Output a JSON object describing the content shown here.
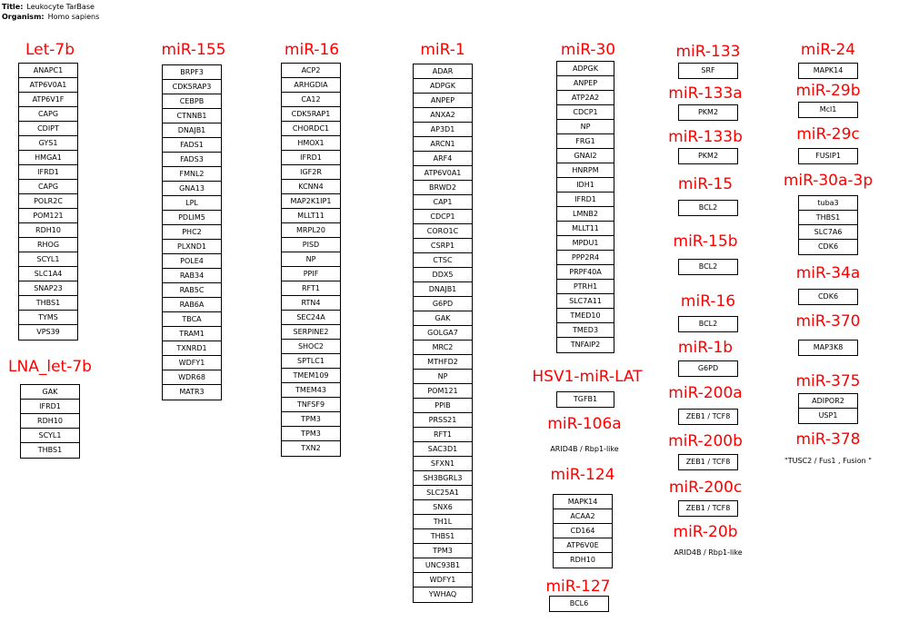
{
  "header": {
    "title_label": "Title:",
    "title_value": "Leukocyte TarBase",
    "organism_label": "Organism:",
    "organism_value": "Homo sapiens"
  },
  "groups": [
    {
      "title": "Let-7b",
      "genes": [
        "ANAPC1",
        "ATP6V0A1",
        "ATP6V1F",
        "CAPG",
        "CDIPT",
        "GYS1",
        "HMGA1",
        "IFRD1",
        "CAPG",
        "POLR2C",
        "POM121",
        "RDH10",
        "RHOG",
        "SCYL1",
        "SLC1A4",
        "SNAP23",
        "THBS1",
        "TYMS",
        "VPS39"
      ]
    },
    {
      "title": "LNA_let-7b",
      "genes": [
        "GAK",
        "IFRD1",
        "RDH10",
        "SCYL1",
        "THBS1"
      ]
    },
    {
      "title": "miR-155",
      "genes": [
        "BRPF3",
        "CDK5RAP3",
        "CEBPB",
        "CTNNB1",
        "DNAJB1",
        "FADS1",
        "FADS3",
        "FMNL2",
        "GNA13",
        "LPL",
        "PDLIM5",
        "PHC2",
        "PLXND1",
        "POLE4",
        "RAB34",
        "RAB5C",
        "RAB6A",
        "TBCA",
        "TRAM1",
        "TXNRD1",
        "WDFY1",
        "WDR68",
        "MATR3"
      ]
    },
    {
      "title": "miR-16",
      "genes": [
        "ACP2",
        "ARHGDIA",
        "CA12",
        "CDK5RAP1",
        "CHORDC1",
        "HMOX1",
        "IFRD1",
        "IGF2R",
        "KCNN4",
        "MAP2K1IP1",
        "MLLT11",
        "MRPL20",
        "PISD",
        "NP",
        "PPIF",
        "RFT1",
        "RTN4",
        "SEC24A",
        "SERPINE2",
        "SHOC2",
        "SPTLC1",
        "TMEM109",
        "TMEM43",
        "TNFSF9",
        "TPM3",
        "TPM3",
        "TXN2"
      ]
    },
    {
      "title": "miR-1",
      "genes": [
        "ADAR",
        "ADPGK",
        "ANPEP",
        "ANXA2",
        "AP3D1",
        "ARCN1",
        "ARF4",
        "ATP6V0A1",
        "BRWD2",
        "CAP1",
        "CDCP1",
        "CORO1C",
        "CSRP1",
        "CTSC",
        "DDX5",
        "DNAJB1",
        "G6PD",
        "GAK",
        "GOLGA7",
        "MRC2",
        "MTHFD2",
        "NP",
        "POM121",
        "PPIB",
        "PRSS21",
        "RFT1",
        "SAC3D1",
        "SFXN1",
        "SH3BGRL3",
        "SLC25A1",
        "SNX6",
        "TH1L",
        "THBS1",
        "TPM3",
        "UNC93B1",
        "WDFY1",
        "YWHAQ"
      ]
    },
    {
      "title": "miR-30",
      "genes": [
        "ADPGK",
        "ANPEP",
        "ATP2A2",
        "CDCP1",
        "NP",
        "FRG1",
        "GNAI2",
        "HNRPM",
        "IDH1",
        "IFRD1",
        "LMNB2",
        "MLLT11",
        "MPDU1",
        "PPP2R4",
        "PRPF40A",
        "PTRH1",
        "SLC7A11",
        "TMED10",
        "TMED3",
        "TNFAIP2"
      ]
    },
    {
      "title": "HSV1-miR-LAT",
      "genes": [
        "TGFB1"
      ]
    },
    {
      "title": "miR-106a",
      "genes": [
        "ARID4B / Rbp1-like"
      ]
    },
    {
      "title": "miR-124",
      "genes": [
        "MAPK14",
        "ACAA2",
        "CD164",
        "ATP6V0E",
        "RDH10"
      ]
    },
    {
      "title": "miR-127",
      "genes": [
        "BCL6"
      ]
    },
    {
      "title": "miR-133",
      "genes": [
        "SRF"
      ]
    },
    {
      "title": "miR-133a",
      "genes": [
        "PKM2"
      ]
    },
    {
      "title": "miR-133b",
      "genes": [
        "PKM2"
      ]
    },
    {
      "title": "miR-15",
      "genes": [
        "BCL2"
      ]
    },
    {
      "title": "miR-15b",
      "genes": [
        "BCL2"
      ]
    },
    {
      "title": "miR-16",
      "genes": [
        "BCL2"
      ]
    },
    {
      "title": "miR-1b",
      "genes": [
        "G6PD"
      ]
    },
    {
      "title": "miR-200a",
      "genes": [
        "ZEB1 / TCF8"
      ]
    },
    {
      "title": "miR-200b",
      "genes": [
        "ZEB1 / TCF8"
      ]
    },
    {
      "title": "miR-200c",
      "genes": [
        "ZEB1 / TCF8"
      ]
    },
    {
      "title": "miR-20b",
      "genes": [
        "ARID4B / Rbp1-like"
      ]
    },
    {
      "title": "miR-24",
      "genes": [
        "MAPK14"
      ]
    },
    {
      "title": "miR-29b",
      "genes": [
        "Mcl1"
      ]
    },
    {
      "title": "miR-29c",
      "genes": [
        "FUSIP1"
      ]
    },
    {
      "title": "miR-30a-3p",
      "genes": [
        "tuba3",
        "THBS1",
        "SLC7A6",
        "CDK6"
      ]
    },
    {
      "title": "miR-34a",
      "genes": [
        "CDK6"
      ]
    },
    {
      "title": "miR-370",
      "genes": [
        "MAP3K8"
      ]
    },
    {
      "title": "miR-375",
      "genes": [
        "ADIPOR2",
        "USP1"
      ]
    },
    {
      "title": "miR-378",
      "genes": [
        "\"TUSC2 / Fus1 , Fusion \""
      ]
    }
  ]
}
